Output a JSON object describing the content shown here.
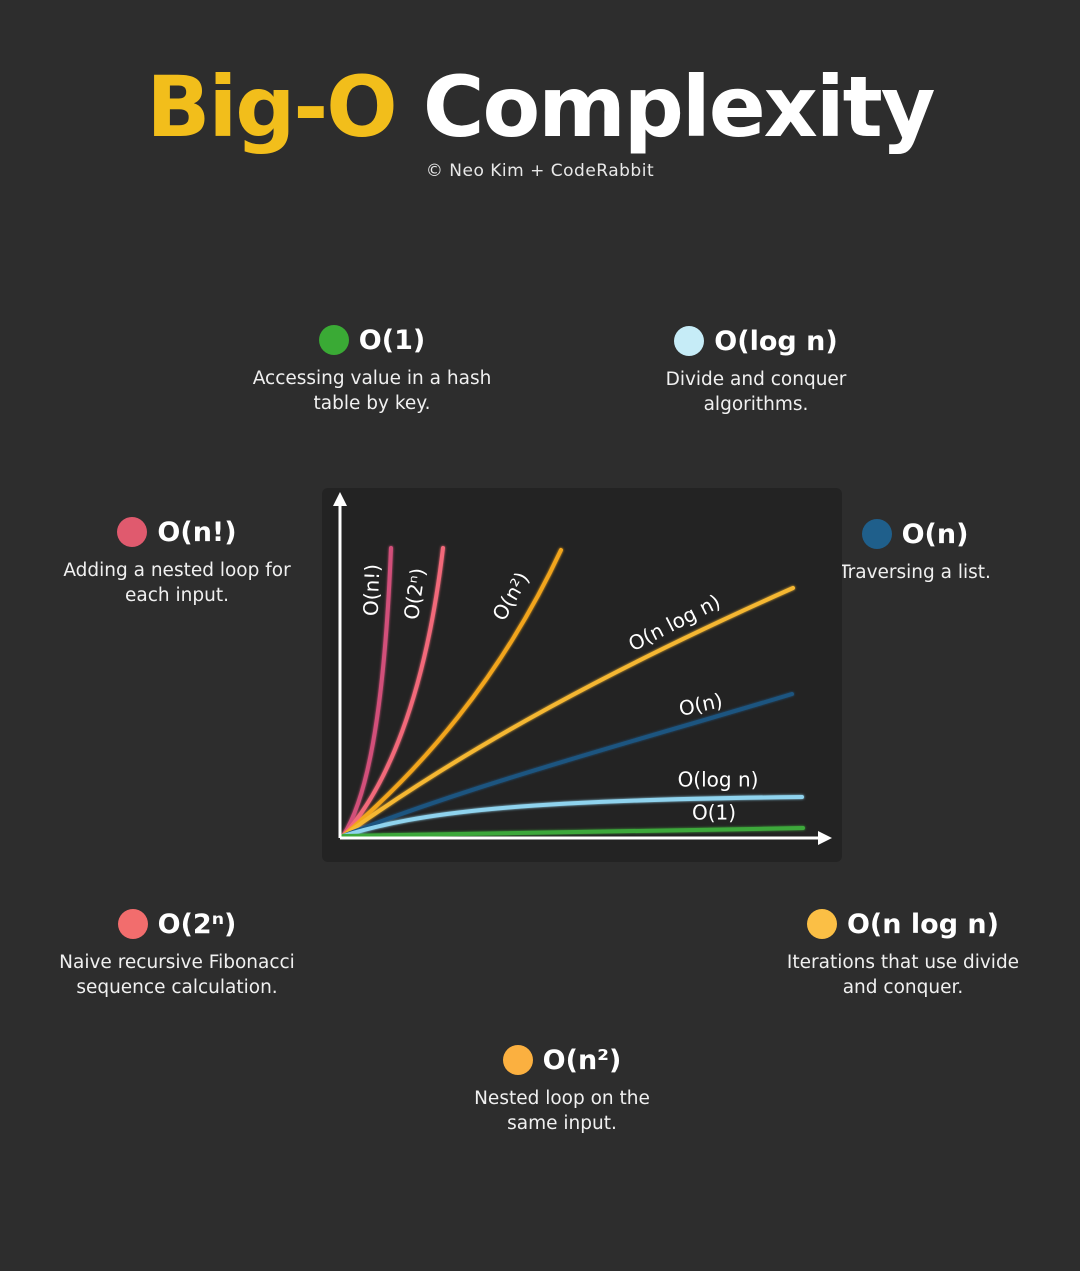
{
  "header": {
    "title_accent": "Big-O",
    "title_rest": "Complexity",
    "credit": "© Neo Kim + CodeRabbit"
  },
  "legend": [
    {
      "id": "o1",
      "label": "O(1)",
      "description": [
        "Accessing value in a hash",
        "table by key."
      ],
      "color": "#3aaa35"
    },
    {
      "id": "ologn",
      "label": "O(log n)",
      "description": [
        "Divide and conquer",
        "algorithms."
      ],
      "color": "#c6ecf7"
    },
    {
      "id": "ofact",
      "label": "O(n!)",
      "description": [
        "Adding a nested loop for",
        "each input."
      ],
      "color": "#e05a6e"
    },
    {
      "id": "on",
      "label": "O(n)",
      "description": [
        "Traversing a list."
      ],
      "color": "#1f5f8b"
    },
    {
      "id": "o2n",
      "label": "O(2ⁿ)",
      "description": [
        "Naive recursive Fibonacci",
        "sequence calculation."
      ],
      "color": "#f26d6d"
    },
    {
      "id": "onlogn",
      "label": "O(n log n)",
      "description": [
        "Iterations that use divide",
        "and conquer."
      ],
      "color": "#fbbf45"
    },
    {
      "id": "on2",
      "label": "O(n²)",
      "description": [
        "Nested loop on the",
        "same input."
      ],
      "color": "#fbb040"
    }
  ],
  "graph": {
    "curves": [
      {
        "id": "ofact",
        "label": "O(n!)",
        "color": "#d2507a"
      },
      {
        "id": "o2n",
        "label": "O(2ⁿ)",
        "color": "#f2697a"
      },
      {
        "id": "on2",
        "label": "O(n²)",
        "color": "#f2a51e"
      },
      {
        "id": "onlogn",
        "label": "O(n log n)",
        "color": "#f5b731"
      },
      {
        "id": "on",
        "label": "O(n)",
        "color": "#1f5480"
      },
      {
        "id": "ologn",
        "label": "O(log n)",
        "color": "#8fd3ee"
      },
      {
        "id": "o1",
        "label": "O(1)",
        "color": "#3ea83a"
      }
    ]
  }
}
